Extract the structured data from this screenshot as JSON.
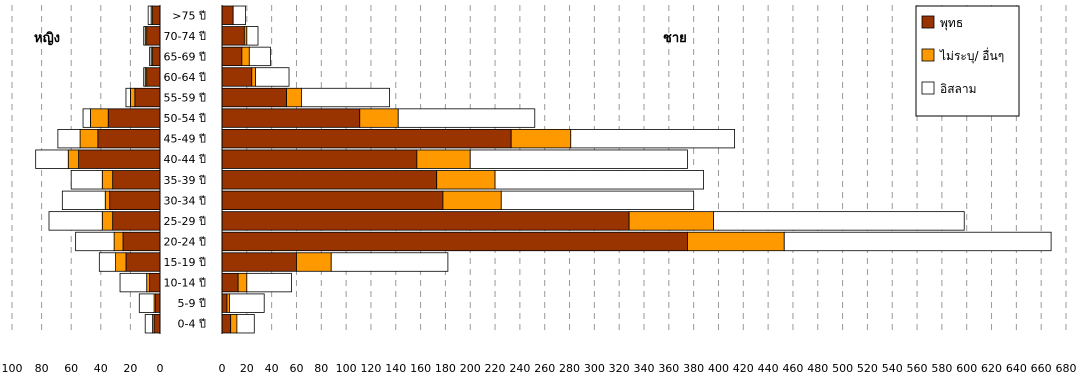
{
  "chart_data": {
    "type": "bar",
    "orientation": "horizontal",
    "stacked": true,
    "layout": "population-pyramid",
    "categories": [
      "0-4 ปี",
      "5-9 ปี",
      "10-14 ปี",
      "15-19 ปี",
      "20-24 ปี",
      "25-29 ปี",
      "30-34 ปี",
      "35-39 ปี",
      "40-44 ปี",
      "45-49 ปี",
      "50-54 ปี",
      "55-59 ปี",
      "60-64 ปี",
      "65-69 ปี",
      "70-74 ปี",
      ">75 ปี"
    ],
    "series_colors": [
      "#993300",
      "#ff9900",
      "#ffffff"
    ],
    "female": {
      "label": "หญิง",
      "series": [
        {
          "name": "พุทธ",
          "values": [
            4,
            3,
            7,
            23,
            25,
            32,
            34,
            32,
            55,
            42,
            35,
            17,
            9,
            5,
            9,
            5
          ]
        },
        {
          "name": "ไม่ระบุ/ อื่นๆ",
          "values": [
            1,
            1,
            2,
            7,
            6,
            7,
            3,
            7,
            7,
            12,
            12,
            3,
            1,
            1,
            1,
            1
          ]
        },
        {
          "name": "อิสลาม",
          "values": [
            5,
            10,
            18,
            11,
            26,
            36,
            29,
            21,
            22,
            15,
            5,
            3,
            1,
            1,
            1,
            2
          ]
        }
      ],
      "xlim": [
        0,
        100
      ],
      "xticks": [
        100,
        80,
        60,
        40,
        20,
        0
      ]
    },
    "male": {
      "label": "ชาย",
      "series": [
        {
          "name": "พุทธ",
          "values": [
            7,
            4,
            13,
            60,
            375,
            328,
            178,
            173,
            157,
            233,
            111,
            52,
            24,
            16,
            18,
            9
          ]
        },
        {
          "name": "ไม่ระบุ/ อื่นๆ",
          "values": [
            5,
            2,
            7,
            28,
            78,
            68,
            47,
            47,
            43,
            48,
            31,
            12,
            3,
            6,
            2,
            0
          ]
        },
        {
          "name": "อิสลาม",
          "values": [
            14,
            28,
            36,
            94,
            215,
            202,
            155,
            168,
            175,
            132,
            110,
            71,
            27,
            17,
            9,
            10
          ]
        }
      ],
      "xlim": [
        0,
        680
      ],
      "xticks": [
        0,
        20,
        40,
        60,
        80,
        100,
        120,
        140,
        160,
        180,
        200,
        220,
        240,
        260,
        280,
        300,
        320,
        340,
        360,
        380,
        400,
        420,
        440,
        460,
        480,
        500,
        520,
        540,
        560,
        580,
        600,
        620,
        640,
        660,
        680
      ]
    },
    "legend": {
      "placement": "top-right",
      "items": [
        "พุทธ",
        "ไม่ระบุ/ อื่นๆ",
        "อิสลาม"
      ]
    },
    "grid": true
  }
}
